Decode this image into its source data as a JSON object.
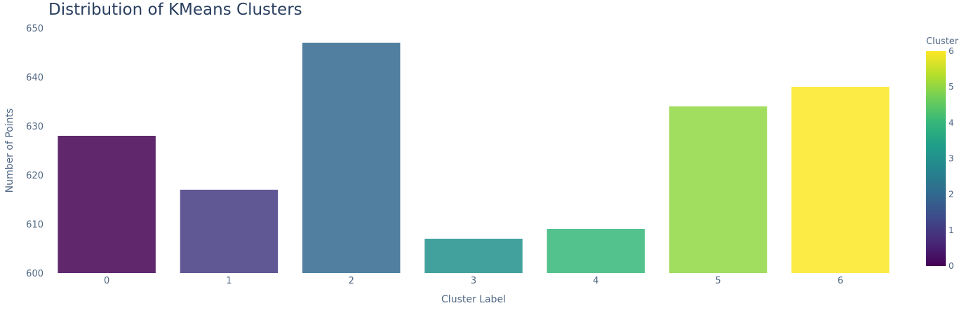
{
  "chart_data": {
    "type": "bar",
    "title": "Distribution of KMeans Clusters",
    "xlabel": "Cluster Label",
    "ylabel": "Number of Points",
    "categories": [
      "0",
      "1",
      "2",
      "3",
      "4",
      "5",
      "6"
    ],
    "values": [
      628,
      617,
      647,
      607,
      609,
      634,
      638
    ],
    "ylim": [
      600,
      650
    ],
    "yticks": [
      "600",
      "610",
      "620",
      "630",
      "640",
      "650"
    ],
    "grid": false,
    "bar_opacity": 0.85,
    "colorscale": "viridis",
    "colorbar": {
      "title": "Cluster",
      "range": [
        0,
        6
      ],
      "ticks": [
        "0",
        "1",
        "2",
        "3",
        "4",
        "5",
        "6"
      ]
    },
    "colors": [
      "#440154",
      "#443983",
      "#31688e",
      "#21918c",
      "#35b779",
      "#90d743",
      "#fde725"
    ]
  }
}
